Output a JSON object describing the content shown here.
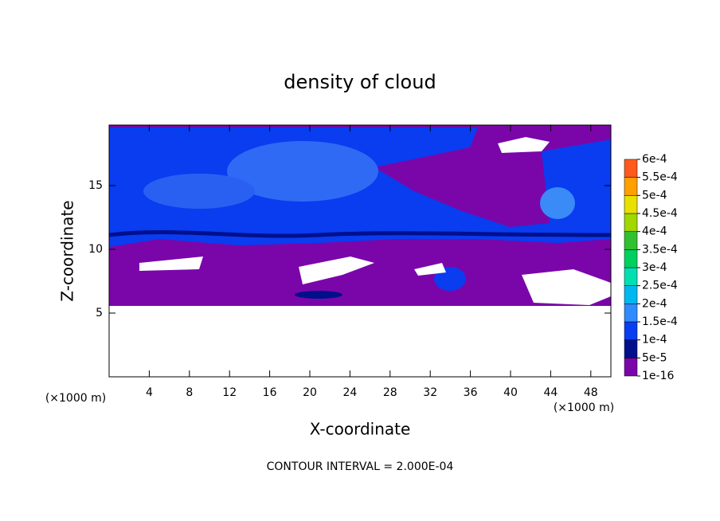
{
  "chart_data": {
    "type": "contour",
    "title": "density of cloud",
    "x_label": "X-coordinate",
    "y_label": "Z-coordinate",
    "x_unit_label": "(×1000 m)",
    "y_unit_label": "(×1000 m)",
    "note": "CONTOUR INTERVAL = 2.000E-04",
    "xlim": [
      0,
      50
    ],
    "xticks": [
      4,
      8,
      12,
      16,
      20,
      24,
      28,
      32,
      36,
      40,
      44,
      48
    ],
    "ylim": [
      0,
      19.75
    ],
    "yticks": [
      5,
      10,
      15
    ],
    "colorbar": {
      "levels": [
        {
          "value": 1e-16,
          "label": "1e-16"
        },
        {
          "value": 5e-05,
          "label": "5e-5"
        },
        {
          "value": 0.0001,
          "label": "1e-4"
        },
        {
          "value": 0.00015,
          "label": "1.5e-4"
        },
        {
          "value": 0.0002,
          "label": "2e-4"
        },
        {
          "value": 0.00025,
          "label": "2.5e-4"
        },
        {
          "value": 0.0003,
          "label": "3e-4"
        },
        {
          "value": 0.00035,
          "label": "3.5e-4"
        },
        {
          "value": 0.0004,
          "label": "4e-4"
        },
        {
          "value": 0.00045,
          "label": "4.5e-4"
        },
        {
          "value": 0.0005,
          "label": "5e-4"
        },
        {
          "value": 0.00055,
          "label": "5.5e-4"
        },
        {
          "value": 0.0006,
          "label": "6e-4"
        }
      ],
      "colors": [
        "#7a06aa",
        "#00108c",
        "#0a3cf0",
        "#2f8cff",
        "#00b8f0",
        "#00e0b0",
        "#00d060",
        "#30c030",
        "#a0d800",
        "#e8e000",
        "#ffa000",
        "#ff5a1e",
        "#f59a9a"
      ]
    }
  }
}
